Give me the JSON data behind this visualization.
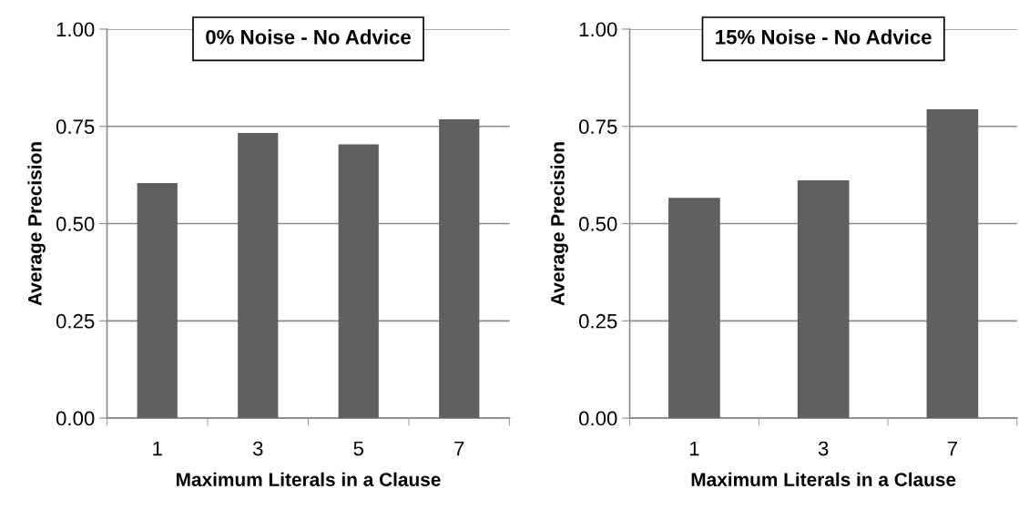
{
  "chart_data": [
    {
      "type": "bar",
      "title": "0% Noise - No Advice",
      "xlabel": "Maximum Literals in a Clause",
      "ylabel": "Average Precision",
      "categories": [
        "1",
        "3",
        "5",
        "7"
      ],
      "values": [
        0.604,
        0.733,
        0.704,
        0.768
      ],
      "color": "#606060",
      "ylim": [
        0,
        1
      ],
      "yticks": [
        {
          "value": 0,
          "label": "0.00"
        },
        {
          "value": 0.25,
          "label": "0.25"
        },
        {
          "value": 0.5,
          "label": "0.50"
        },
        {
          "value": 0.75,
          "label": "0.75"
        },
        {
          "value": 1,
          "label": "1.00"
        }
      ],
      "grid": "y"
    },
    {
      "type": "bar",
      "title": "15% Noise - No Advice",
      "xlabel": "Maximum Literals in a Clause",
      "ylabel": "Average Precision",
      "categories": [
        "1",
        "3",
        "7"
      ],
      "values": [
        0.566,
        0.611,
        0.794
      ],
      "color": "#606060",
      "ylim": [
        0,
        1
      ],
      "yticks": [
        {
          "value": 0,
          "label": "0.00"
        },
        {
          "value": 0.25,
          "label": "0.25"
        },
        {
          "value": 0.5,
          "label": "0.50"
        },
        {
          "value": 0.75,
          "label": "0.75"
        },
        {
          "value": 1,
          "label": "1.00"
        }
      ],
      "grid": "y"
    }
  ]
}
